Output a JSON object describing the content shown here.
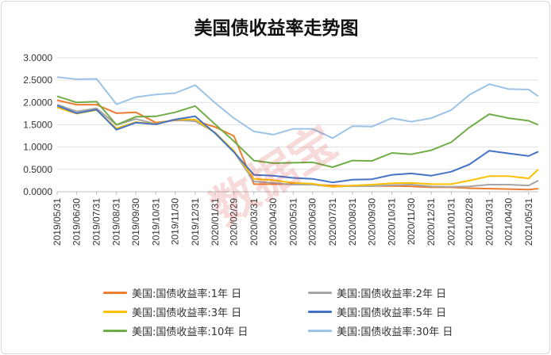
{
  "chart_data": {
    "type": "line",
    "title": "美国债收益率走势图",
    "watermark": "数据宝",
    "xlabel": "",
    "ylabel": "",
    "ylim": [
      0,
      3
    ],
    "y_ticks": [
      "3.0000",
      "2.5000",
      "2.0000",
      "1.5000",
      "1.0000",
      "0.5000",
      "0.0000"
    ],
    "x_ticks": [
      "2019/05/31",
      "2019/06/30",
      "2019/07/31",
      "2019/08/31",
      "2019/09/30",
      "2019/10/31",
      "2019/11/30",
      "2019/12/31",
      "2020/01/31",
      "2020/02/29",
      "2020/03/31",
      "2020/04/30",
      "2020/05/31",
      "2020/06/30",
      "2020/07/31",
      "2020/08/31",
      "2020/09/30",
      "2020/10/31",
      "2020/11/30",
      "2020/12/31",
      "2021/01/31",
      "2021/02/28",
      "2021/03/31",
      "2021/04/30",
      "2021/05/31"
    ],
    "grid": "horizontal",
    "legend_position": "bottom",
    "x": [
      "2019/05/31",
      "2019/06/30",
      "2019/07/31",
      "2019/08/31",
      "2019/09/30",
      "2019/10/31",
      "2019/11/30",
      "2019/12/31",
      "2020/01/31",
      "2020/02/29",
      "2020/03/31",
      "2020/04/30",
      "2020/05/31",
      "2020/06/30",
      "2020/07/31",
      "2020/08/31",
      "2020/09/30",
      "2020/10/31",
      "2020/11/30",
      "2020/12/31",
      "2021/01/31",
      "2021/02/28",
      "2021/03/31",
      "2021/04/30",
      "2021/05/31",
      "2021/06/15"
    ],
    "series": [
      {
        "name": "美国:国债收益率:1年 日",
        "color": "#ed7d31",
        "values": [
          2.05,
          1.95,
          1.95,
          1.76,
          1.78,
          1.55,
          1.6,
          1.59,
          1.45,
          1.25,
          0.17,
          0.17,
          0.17,
          0.16,
          0.14,
          0.13,
          0.13,
          0.13,
          0.12,
          0.1,
          0.1,
          0.08,
          0.07,
          0.06,
          0.05,
          0.07
        ]
      },
      {
        "name": "美国:国债收益率:2年 日",
        "color": "#a5a5a5",
        "values": [
          1.95,
          1.8,
          1.87,
          1.5,
          1.63,
          1.52,
          1.61,
          1.58,
          1.33,
          0.9,
          0.23,
          0.2,
          0.16,
          0.16,
          0.11,
          0.13,
          0.13,
          0.15,
          0.16,
          0.12,
          0.11,
          0.12,
          0.16,
          0.16,
          0.14,
          0.25
        ]
      },
      {
        "name": "美国:国债收益率:3年 日",
        "color": "#ffc000",
        "values": [
          1.89,
          1.75,
          1.83,
          1.42,
          1.56,
          1.52,
          1.62,
          1.62,
          1.32,
          0.92,
          0.29,
          0.26,
          0.2,
          0.18,
          0.11,
          0.14,
          0.16,
          0.19,
          0.2,
          0.17,
          0.17,
          0.25,
          0.35,
          0.35,
          0.3,
          0.5
        ]
      },
      {
        "name": "美国:国债收益率:5年 日",
        "color": "#4472c4",
        "values": [
          1.93,
          1.76,
          1.84,
          1.39,
          1.55,
          1.51,
          1.62,
          1.69,
          1.31,
          0.89,
          0.38,
          0.36,
          0.31,
          0.29,
          0.21,
          0.27,
          0.28,
          0.38,
          0.41,
          0.36,
          0.45,
          0.61,
          0.92,
          0.86,
          0.8,
          0.9
        ]
      },
      {
        "name": "美国:国债收益率:10年 日",
        "color": "#70ad47",
        "values": [
          2.14,
          2.0,
          2.02,
          1.5,
          1.68,
          1.69,
          1.78,
          1.92,
          1.51,
          1.13,
          0.7,
          0.64,
          0.65,
          0.66,
          0.55,
          0.7,
          0.69,
          0.87,
          0.84,
          0.93,
          1.11,
          1.44,
          1.74,
          1.65,
          1.59,
          1.5
        ]
      },
      {
        "name": "美国:国债收益率:30年 日",
        "color": "#9dc3e6",
        "values": [
          2.57,
          2.52,
          2.53,
          1.96,
          2.12,
          2.18,
          2.21,
          2.39,
          1.99,
          1.65,
          1.35,
          1.28,
          1.41,
          1.41,
          1.2,
          1.47,
          1.46,
          1.65,
          1.57,
          1.65,
          1.83,
          2.17,
          2.41,
          2.3,
          2.29,
          2.14
        ]
      }
    ]
  }
}
